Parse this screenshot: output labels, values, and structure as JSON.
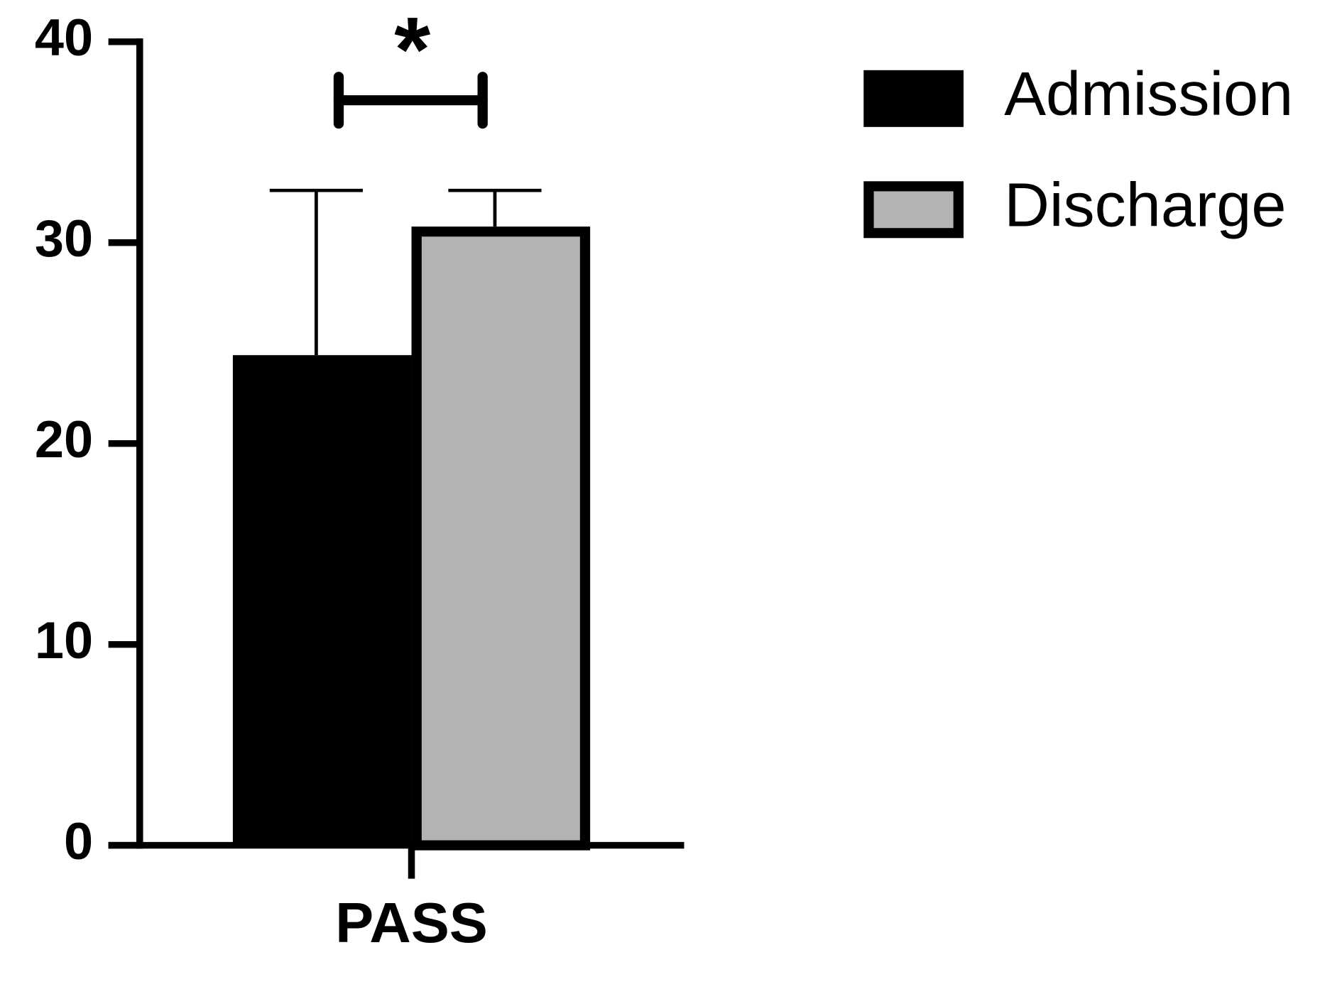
{
  "chart_data": {
    "type": "bar",
    "categories": [
      "PASS"
    ],
    "series": [
      {
        "name": "Admission",
        "color": "#000000",
        "values": [
          24.4
        ],
        "errors": [
          8.2
        ]
      },
      {
        "name": "Discharge",
        "color": "#b3b3b3",
        "values": [
          30.8
        ],
        "errors": [
          1.8
        ]
      }
    ],
    "ylim": [
      0,
      40
    ],
    "yticks": [
      0,
      10,
      20,
      30,
      40
    ],
    "annotation": "*",
    "legend": "right"
  }
}
